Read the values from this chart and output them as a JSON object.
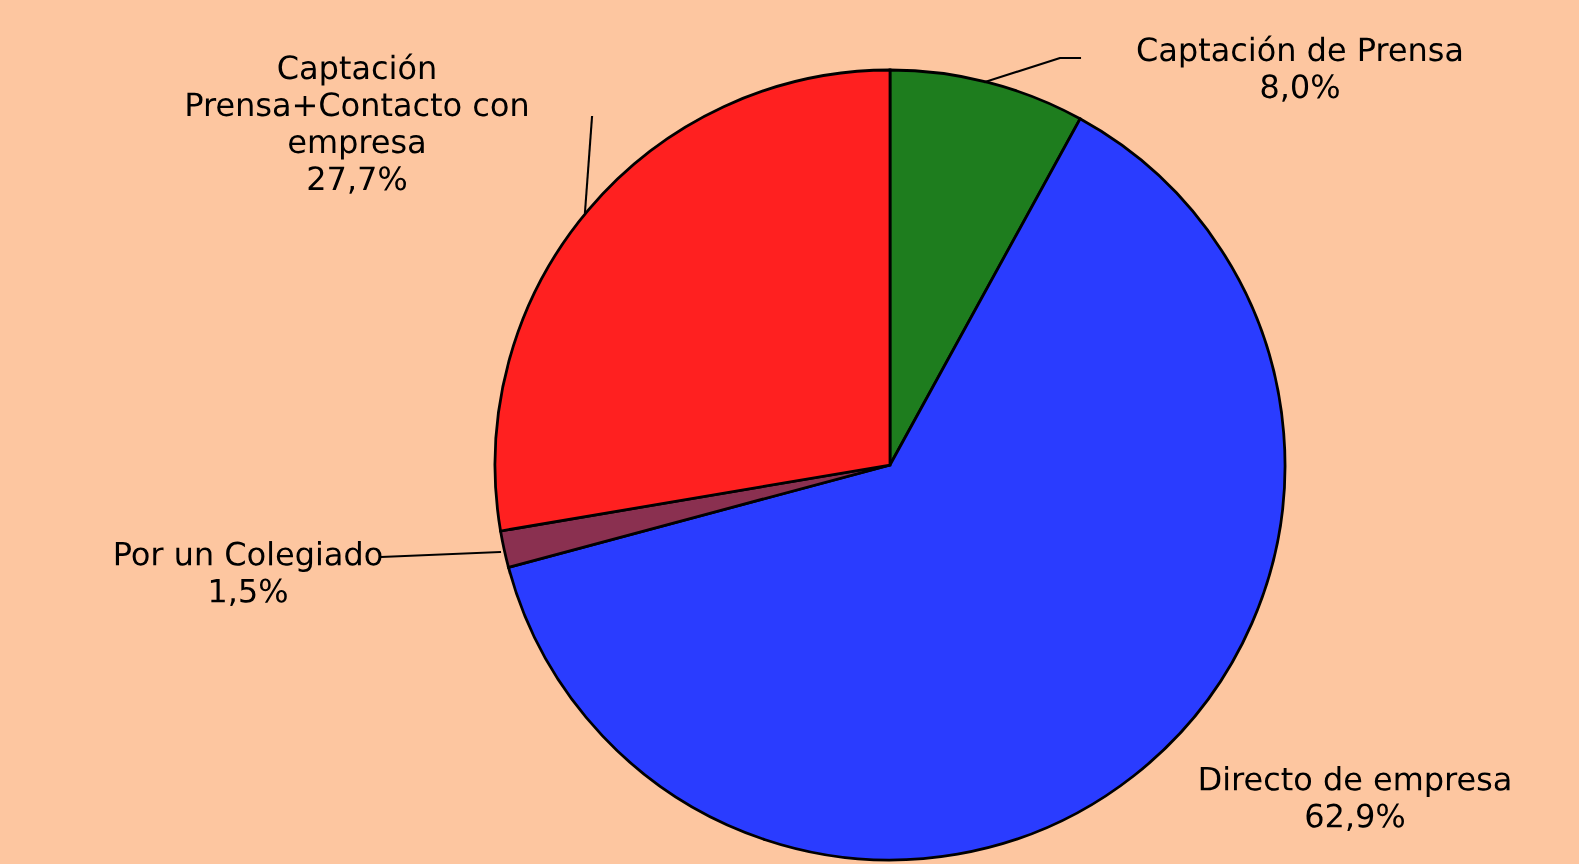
{
  "chart_data": {
    "type": "pie",
    "categories": [
      "Captación de Prensa",
      "Directo de empresa",
      "Por un Colegiado",
      "Captación\nPrensa+Contacto con\nempresa"
    ],
    "values": [
      8.0,
      62.9,
      1.5,
      27.7
    ],
    "colors": [
      "#1e7d1e",
      "#2a3cff",
      "#8a3050",
      "#ff2020"
    ],
    "value_labels": [
      "8,0%",
      "62,9%",
      "1,5%",
      "27,7%"
    ]
  }
}
